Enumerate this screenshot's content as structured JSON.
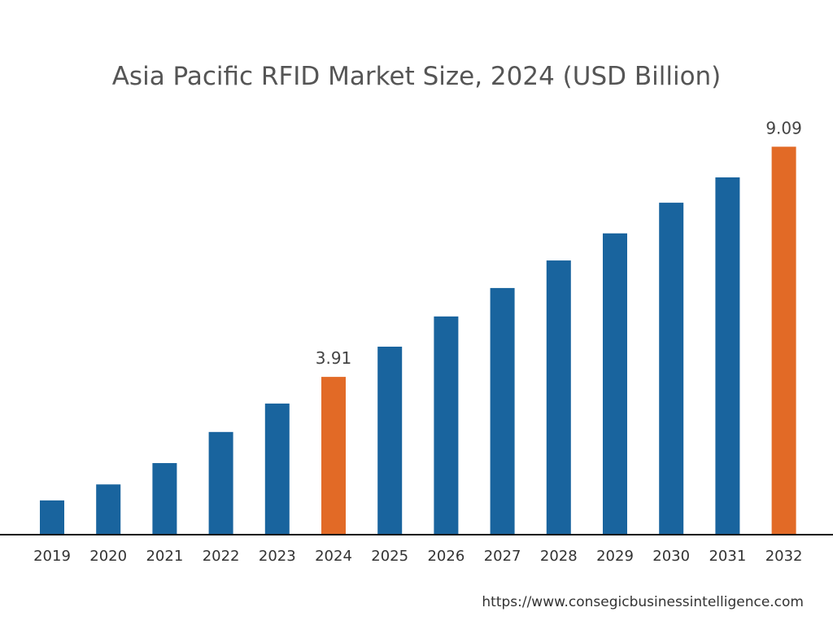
{
  "chart_data": {
    "type": "bar",
    "title": "Asia Pacific RFID Market Size, 2024 (USD Billion)",
    "xlabel": "",
    "ylabel": "",
    "categories": [
      "2019",
      "2020",
      "2021",
      "2022",
      "2023",
      "2024",
      "2025",
      "2026",
      "2027",
      "2028",
      "2029",
      "2030",
      "2031",
      "2032"
    ],
    "values": [
      1.13,
      1.49,
      1.97,
      2.67,
      3.31,
      3.91,
      4.59,
      5.27,
      5.91,
      6.53,
      7.14,
      7.83,
      8.4,
      9.09
    ],
    "data_labels": {
      "2024": "3.91",
      "2032": "9.09"
    },
    "highlighted": [
      "2024",
      "2032"
    ],
    "colors": {
      "default": "#19649e",
      "highlight": "#e26a26"
    },
    "grid": false,
    "legend": "none"
  },
  "source": "https://www.consegicbusinessintelligence.com"
}
